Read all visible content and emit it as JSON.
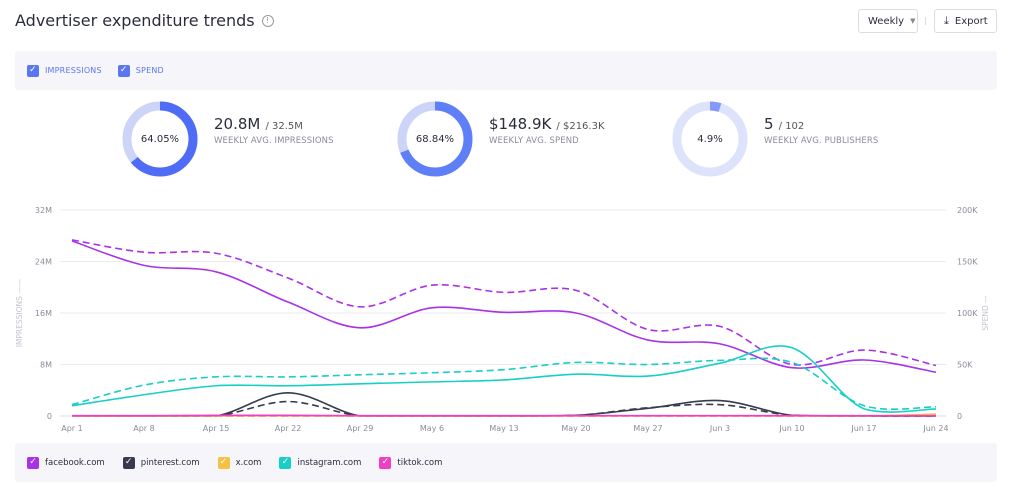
{
  "header": {
    "title": "Advertiser expenditure trends",
    "info_icon": "info-icon",
    "period_select": "Weekly",
    "export_label": "Export"
  },
  "metrics": [
    {
      "label": "IMPRESSIONS",
      "checked": true,
      "color": "#5b77f0"
    },
    {
      "label": "SPEND",
      "checked": true,
      "color": "#5b77f0"
    }
  ],
  "kpis": [
    {
      "percent_label": "64.05%",
      "fraction": 0.6405,
      "value": "20.8M",
      "total": "/ 32.5M",
      "label": "WEEKLY AVG. IMPRESSIONS",
      "color": "#4f6cf6",
      "track": "#ccd4f7"
    },
    {
      "percent_label": "68.84%",
      "fraction": 0.6884,
      "value": "$148.9K",
      "total": "/ $216.3K",
      "label": "WEEKLY AVG. SPEND",
      "color": "#5f7ff7",
      "track": "#ccd4f7"
    },
    {
      "percent_label": "4.9%",
      "fraction": 0.049,
      "value": "5",
      "total": "/ 102",
      "label": "WEEKLY AVG. PUBLISHERS",
      "color": "#8599f8",
      "track": "#dde3fb"
    }
  ],
  "chart_data": {
    "type": "line",
    "x": [
      "Apr 1",
      "Apr 8",
      "Apr 15",
      "Apr 22",
      "Apr 29",
      "May 6",
      "May 13",
      "May 20",
      "May 27",
      "Jun 3",
      "Jun 10",
      "Jun 17",
      "Jun 24"
    ],
    "y_left": {
      "label": "IMPRESSIONS",
      "ticks": [
        "0",
        "8M",
        "16M",
        "24M",
        "32M"
      ],
      "range": [
        0,
        32000000
      ],
      "line_style": "solid"
    },
    "y_right": {
      "label": "SPEND",
      "ticks": [
        "0",
        "50K",
        "100K",
        "150K",
        "200K"
      ],
      "range": [
        0,
        200000
      ],
      "line_style": "dashed"
    },
    "grid": true,
    "legend_placement": "bottom",
    "series": [
      {
        "name": "facebook.com",
        "color": "#a832e8",
        "impressions": [
          27.2,
          23.4,
          22.4,
          17.7,
          13.7,
          16.8,
          16.1,
          16.0,
          11.8,
          11.2,
          7.5,
          8.7,
          6.8
        ],
        "spend": [
          171,
          159,
          158,
          134,
          106,
          127,
          120,
          122,
          84,
          87,
          50,
          64,
          49
        ]
      },
      {
        "name": "pinterest.com",
        "color": "#373b4d",
        "impressions": [
          0,
          0,
          0,
          3.6,
          0,
          0,
          0,
          0.1,
          1.2,
          2.4,
          0.1,
          0,
          0
        ],
        "spend": [
          0,
          0,
          0,
          14,
          0,
          0,
          0,
          0.5,
          8,
          11,
          0.5,
          0,
          0
        ]
      },
      {
        "name": "x.com",
        "color": "#f7c244",
        "impressions": [
          0,
          0,
          0,
          0,
          0,
          0,
          0,
          0,
          0,
          0,
          0,
          0,
          0.3
        ],
        "spend": [
          0,
          0,
          0,
          0,
          0,
          0,
          0,
          0,
          0,
          0,
          0,
          0,
          1.5
        ]
      },
      {
        "name": "instagram.com",
        "color": "#17cfc6",
        "impressions": [
          1.6,
          3.3,
          4.7,
          4.7,
          5.0,
          5.3,
          5.6,
          6.5,
          6.2,
          8.2,
          10.6,
          1.1,
          1.1
        ],
        "spend": [
          11,
          30,
          38,
          38,
          40,
          42,
          45,
          52,
          50,
          54,
          52,
          10,
          9
        ]
      },
      {
        "name": "tiktok.com",
        "color": "#ee3fc5",
        "impressions": [
          0.05,
          0.05,
          0.1,
          0.1,
          0.05,
          0.05,
          0.05,
          0.05,
          0.05,
          0.05,
          0.05,
          0.05,
          0.05
        ],
        "spend": [
          0.2,
          0.2,
          0.4,
          0.4,
          0.2,
          0.2,
          0.2,
          0.2,
          0.2,
          0.2,
          0.2,
          0.2,
          0.2
        ]
      }
    ]
  }
}
